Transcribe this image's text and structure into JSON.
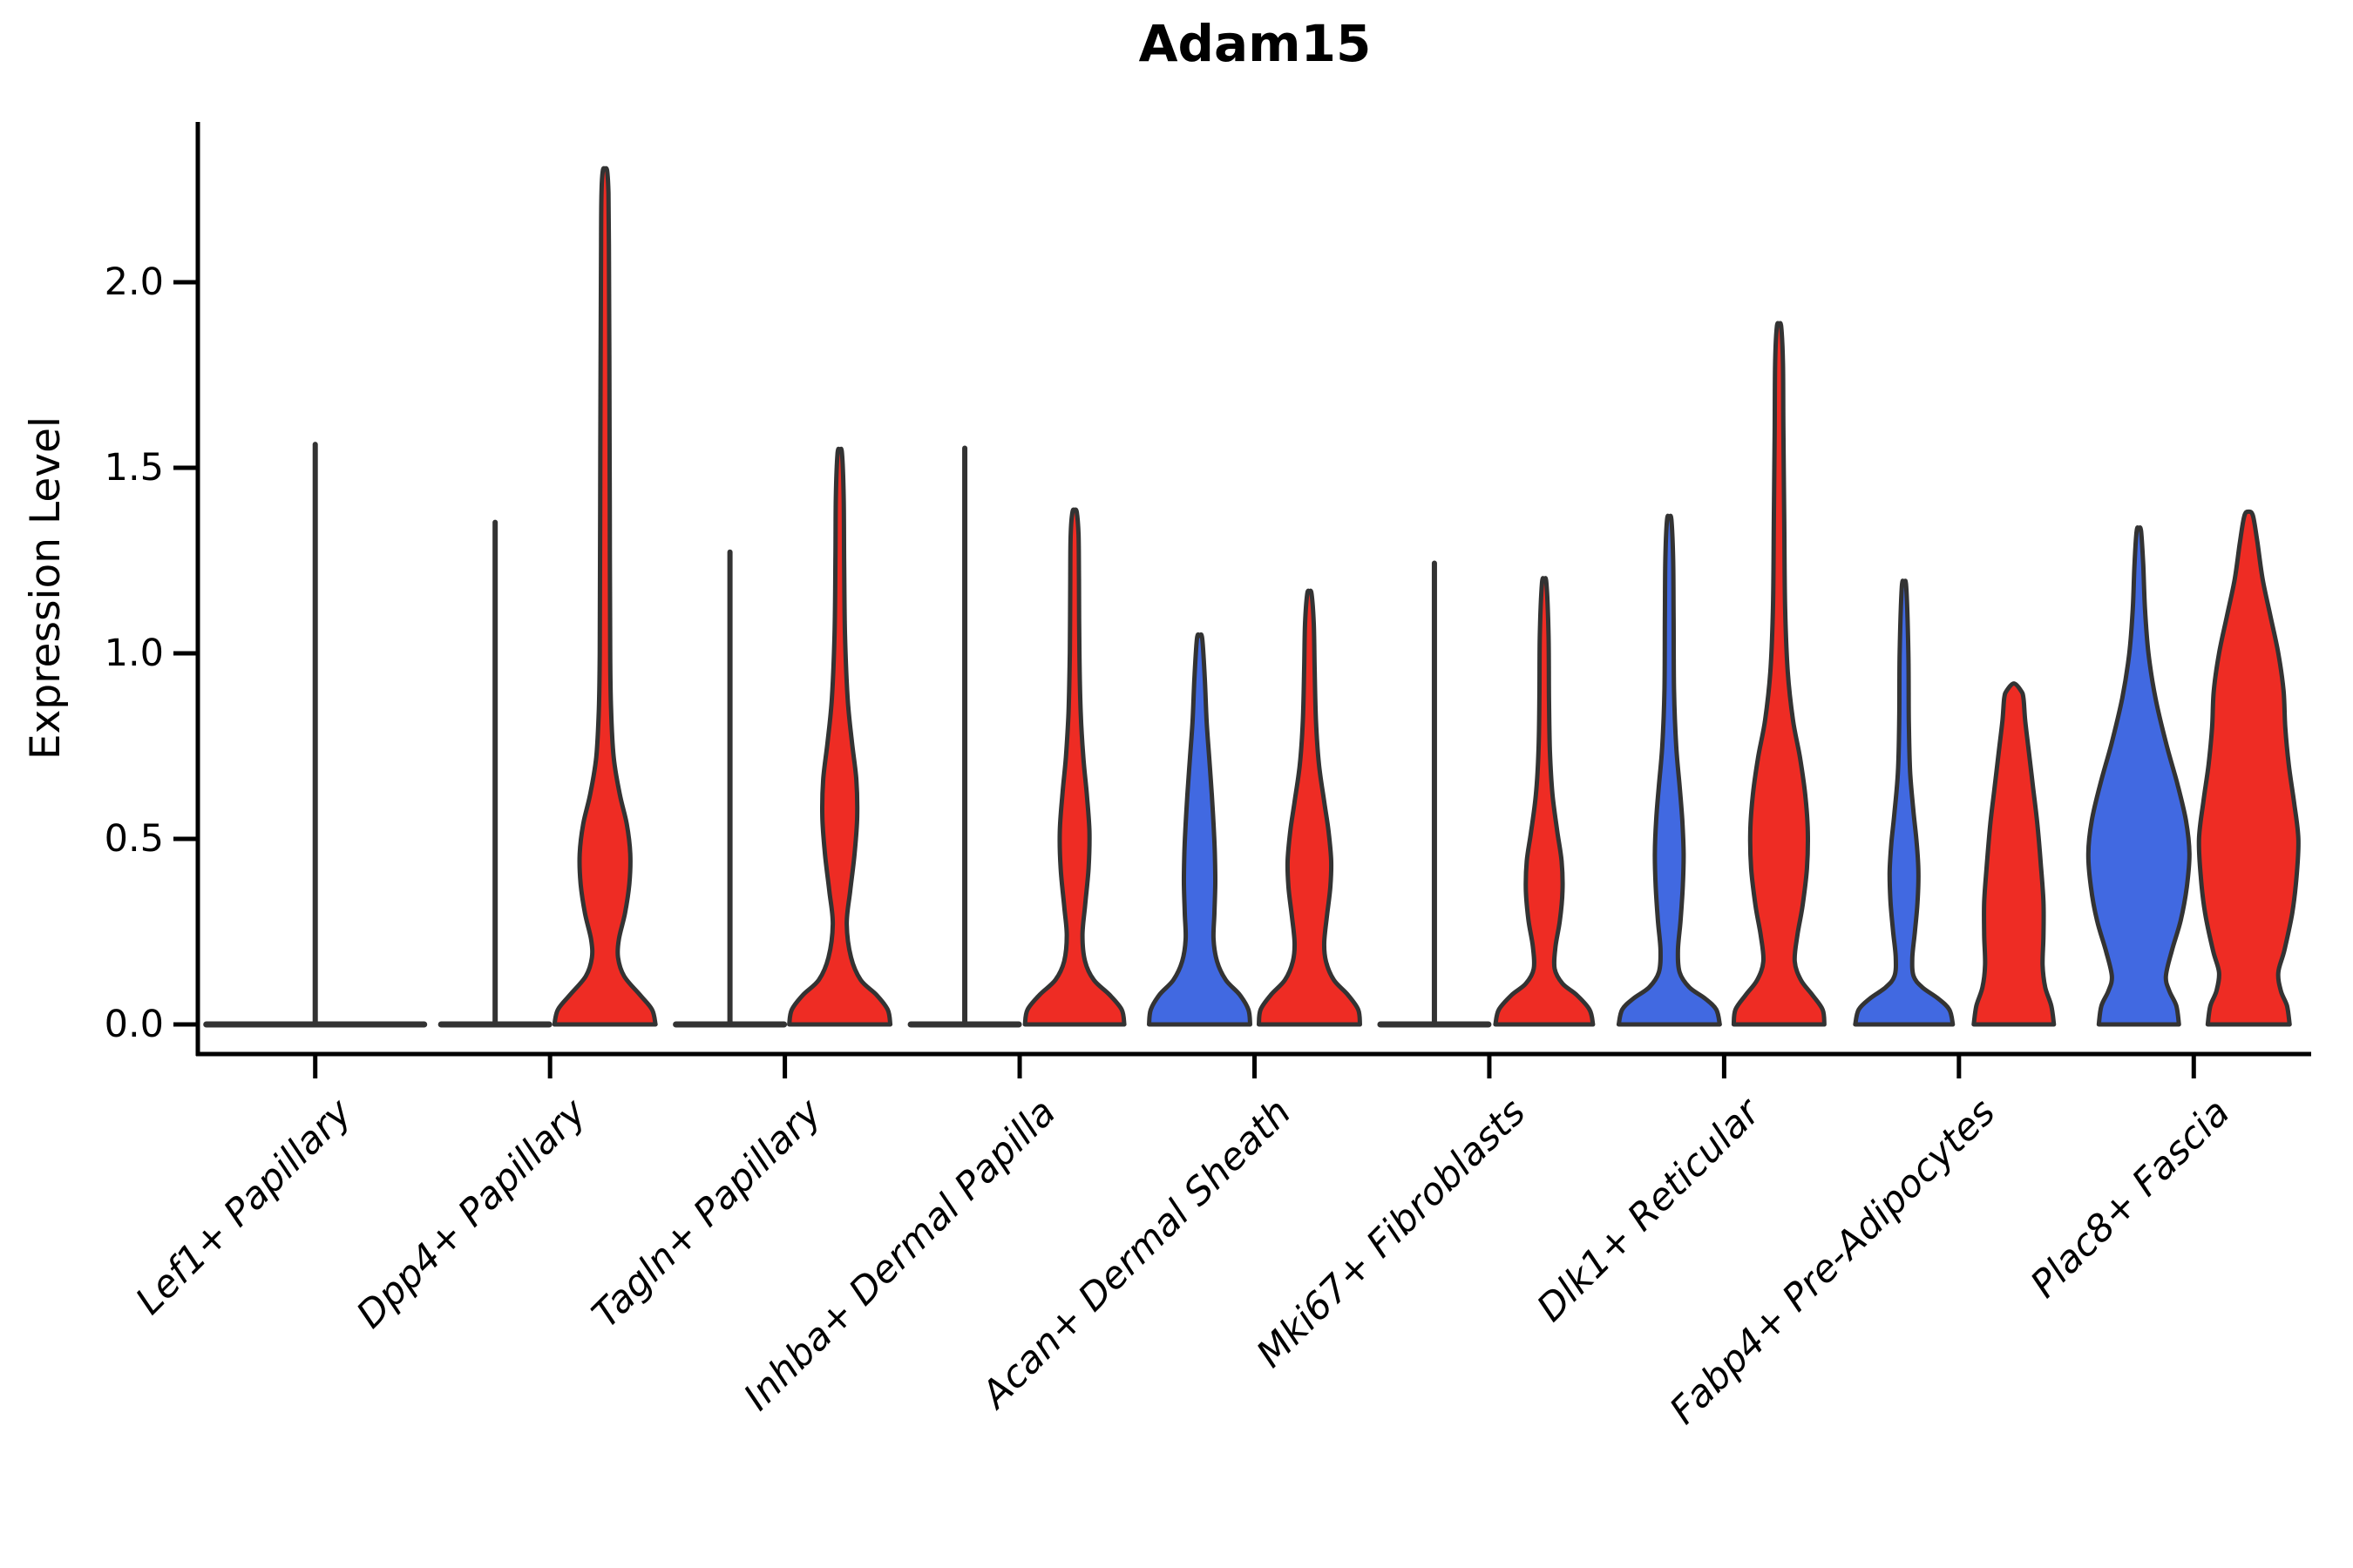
{
  "colors": {
    "blue_fill": "#4169E1",
    "red_fill": "#EE2C24",
    "violin_outline": "#333333",
    "axis_color": "#000000"
  },
  "chart_data": {
    "type": "violin",
    "title": "Adam15",
    "ylabel": "Expression Level",
    "yticks": [
      0.0,
      0.5,
      1.0,
      1.5,
      2.0
    ],
    "ytick_labels": [
      "0.0",
      "0.5",
      "1.0",
      "1.5",
      "2.0"
    ],
    "ylim": [
      -0.08,
      2.43
    ],
    "grid": false,
    "legend_position": "none",
    "group_colors": {
      "left": "#4169E1",
      "right": "#EE2C24"
    },
    "categories": [
      "Lef1+ Papillary",
      "Dpp4+ Papillary",
      "Tagln+ Papillary",
      "Inhba+ Dermal Papilla",
      "Acan+ Dermal Sheath",
      "Mki67+ Fibroblasts",
      "Dlk1+ Reticular",
      "Fabp4+ Pre-Adipocytes",
      "Plac8+ Fascia"
    ],
    "violins": [
      {
        "category": "Lef1+ Papillary",
        "center_spike": 1.57,
        "left": {
          "collapsed": true,
          "spike": null
        },
        "right": {
          "collapsed": true,
          "spike": null
        }
      },
      {
        "category": "Dpp4+ Papillary",
        "left": {
          "collapsed": true,
          "spike": 1.36
        },
        "right": {
          "max": 2.3,
          "profile": [
            [
              0,
              58
            ],
            [
              0.04,
              54
            ],
            [
              0.08,
              40
            ],
            [
              0.13,
              22
            ],
            [
              0.18,
              15
            ],
            [
              0.23,
              16
            ],
            [
              0.3,
              23
            ],
            [
              0.38,
              28
            ],
            [
              0.46,
              29
            ],
            [
              0.54,
              25
            ],
            [
              0.62,
              17
            ],
            [
              0.72,
              10
            ],
            [
              0.85,
              7
            ],
            [
              1.0,
              6
            ],
            [
              1.4,
              5.5
            ],
            [
              1.8,
              5
            ],
            [
              2.1,
              4.5
            ],
            [
              2.24,
              4
            ],
            [
              2.3,
              2.5
            ]
          ]
        }
      },
      {
        "category": "Tagln+ Papillary",
        "left": {
          "collapsed": true,
          "spike": 1.28
        },
        "right": {
          "max": 1.54,
          "profile": [
            [
              0,
              58
            ],
            [
              0.04,
              55
            ],
            [
              0.08,
              42
            ],
            [
              0.12,
              24
            ],
            [
              0.18,
              13
            ],
            [
              0.27,
              8
            ],
            [
              0.36,
              12
            ],
            [
              0.46,
              17
            ],
            [
              0.56,
              20
            ],
            [
              0.66,
              19
            ],
            [
              0.76,
              14
            ],
            [
              0.88,
              9
            ],
            [
              1.05,
              6
            ],
            [
              1.25,
              5
            ],
            [
              1.42,
              4.5
            ],
            [
              1.54,
              2.5
            ]
          ]
        }
      },
      {
        "category": "Inhba+ Dermal Papilla",
        "left": {
          "collapsed": true,
          "spike": 1.56
        },
        "right": {
          "max": 1.38,
          "profile": [
            [
              0,
              57
            ],
            [
              0.04,
              54
            ],
            [
              0.08,
              40
            ],
            [
              0.12,
              22
            ],
            [
              0.17,
              12
            ],
            [
              0.24,
              9
            ],
            [
              0.32,
              12
            ],
            [
              0.42,
              16
            ],
            [
              0.52,
              17
            ],
            [
              0.62,
              14
            ],
            [
              0.72,
              10
            ],
            [
              0.84,
              7
            ],
            [
              1.0,
              5.5
            ],
            [
              1.2,
              5
            ],
            [
              1.32,
              4.5
            ],
            [
              1.38,
              2.5
            ]
          ]
        }
      },
      {
        "category": "Acan+ Dermal Sheath",
        "left": {
          "max": 1.04,
          "profile": [
            [
              0,
              58
            ],
            [
              0.04,
              56
            ],
            [
              0.08,
              46
            ],
            [
              0.12,
              30
            ],
            [
              0.17,
              20
            ],
            [
              0.23,
              16
            ],
            [
              0.3,
              17
            ],
            [
              0.38,
              18
            ],
            [
              0.46,
              17.5
            ],
            [
              0.54,
              16
            ],
            [
              0.62,
              14
            ],
            [
              0.72,
              11
            ],
            [
              0.82,
              8
            ],
            [
              0.93,
              6
            ],
            [
              1.04,
              3
            ]
          ]
        },
        "right": {
          "max": 1.16,
          "profile": [
            [
              0,
              58
            ],
            [
              0.04,
              56
            ],
            [
              0.08,
              44
            ],
            [
              0.12,
              28
            ],
            [
              0.17,
              19
            ],
            [
              0.22,
              17
            ],
            [
              0.29,
              20
            ],
            [
              0.37,
              24
            ],
            [
              0.44,
              25
            ],
            [
              0.52,
              22
            ],
            [
              0.6,
              17
            ],
            [
              0.7,
              11
            ],
            [
              0.82,
              7.5
            ],
            [
              0.96,
              6
            ],
            [
              1.08,
              5
            ],
            [
              1.16,
              2.5
            ]
          ]
        }
      },
      {
        "category": "Mki67+ Fibroblasts",
        "left": {
          "collapsed": true,
          "spike": 1.25
        },
        "right": {
          "max": 1.19,
          "profile": [
            [
              0,
              56
            ],
            [
              0.04,
              52
            ],
            [
              0.08,
              37
            ],
            [
              0.11,
              21
            ],
            [
              0.15,
              12
            ],
            [
              0.21,
              13
            ],
            [
              0.28,
              18
            ],
            [
              0.36,
              21
            ],
            [
              0.44,
              20
            ],
            [
              0.52,
              15
            ],
            [
              0.62,
              9.5
            ],
            [
              0.74,
              6.5
            ],
            [
              0.88,
              5.5
            ],
            [
              1.05,
              5
            ],
            [
              1.19,
              2.5
            ]
          ]
        }
      },
      {
        "category": "Dlk1+ Reticular",
        "left": {
          "max": 1.36,
          "profile": [
            [
              0,
              58
            ],
            [
              0.04,
              54
            ],
            [
              0.07,
              41
            ],
            [
              0.1,
              23
            ],
            [
              0.14,
              12
            ],
            [
              0.2,
              10
            ],
            [
              0.28,
              13
            ],
            [
              0.37,
              15.5
            ],
            [
              0.46,
              16.5
            ],
            [
              0.55,
              15
            ],
            [
              0.64,
              12
            ],
            [
              0.75,
              8
            ],
            [
              0.9,
              5.5
            ],
            [
              1.1,
              5
            ],
            [
              1.25,
              4.5
            ],
            [
              1.36,
              2.5
            ]
          ]
        },
        "right": {
          "max": 1.88,
          "profile": [
            [
              0,
              52
            ],
            [
              0.04,
              50
            ],
            [
              0.08,
              38
            ],
            [
              0.12,
              25
            ],
            [
              0.17,
              18
            ],
            [
              0.24,
              21
            ],
            [
              0.32,
              27
            ],
            [
              0.42,
              32
            ],
            [
              0.52,
              33
            ],
            [
              0.62,
              30
            ],
            [
              0.72,
              24
            ],
            [
              0.82,
              16
            ],
            [
              0.95,
              10
            ],
            [
              1.12,
              7
            ],
            [
              1.35,
              6
            ],
            [
              1.6,
              5
            ],
            [
              1.78,
              4.5
            ],
            [
              1.88,
              2.5
            ]
          ]
        }
      },
      {
        "category": "Fabp4+ Pre-Adipocytes",
        "left": {
          "max": 1.18,
          "profile": [
            [
              0,
              56
            ],
            [
              0.04,
              52
            ],
            [
              0.07,
              39
            ],
            [
              0.1,
              21
            ],
            [
              0.13,
              11
            ],
            [
              0.18,
              9.5
            ],
            [
              0.25,
              12.5
            ],
            [
              0.33,
              15.5
            ],
            [
              0.41,
              16.5
            ],
            [
              0.49,
              14.5
            ],
            [
              0.57,
              11
            ],
            [
              0.68,
              7
            ],
            [
              0.82,
              5.5
            ],
            [
              1.0,
              5
            ],
            [
              1.18,
              2.5
            ]
          ]
        },
        "right": {
          "max": 0.9,
          "profile": [
            [
              0,
              46
            ],
            [
              0.05,
              43
            ],
            [
              0.1,
              36
            ],
            [
              0.16,
              33
            ],
            [
              0.24,
              34
            ],
            [
              0.33,
              34
            ],
            [
              0.43,
              31
            ],
            [
              0.54,
              27
            ],
            [
              0.64,
              22
            ],
            [
              0.74,
              17
            ],
            [
              0.82,
              13
            ],
            [
              0.88,
              11
            ],
            [
              0.9,
              8
            ]
          ]
        }
      },
      {
        "category": "Plac8+ Fascia",
        "left": {
          "max": 1.33,
          "profile": [
            [
              0,
              46
            ],
            [
              0.05,
              43
            ],
            [
              0.09,
              35
            ],
            [
              0.13,
              31
            ],
            [
              0.2,
              38
            ],
            [
              0.28,
              48
            ],
            [
              0.37,
              55
            ],
            [
              0.46,
              58
            ],
            [
              0.55,
              54
            ],
            [
              0.65,
              44
            ],
            [
              0.76,
              31
            ],
            [
              0.88,
              19
            ],
            [
              1.0,
              11
            ],
            [
              1.12,
              7
            ],
            [
              1.24,
              5
            ],
            [
              1.33,
              2.5
            ]
          ]
        },
        "right": {
          "max": 1.37,
          "profile": [
            [
              0,
              47
            ],
            [
              0.05,
              44
            ],
            [
              0.09,
              37
            ],
            [
              0.14,
              34
            ],
            [
              0.2,
              41
            ],
            [
              0.3,
              50
            ],
            [
              0.4,
              55
            ],
            [
              0.5,
              57
            ],
            [
              0.6,
              52
            ],
            [
              0.7,
              46
            ],
            [
              0.8,
              42
            ],
            [
              0.9,
              40
            ],
            [
              1.0,
              34
            ],
            [
              1.1,
              25
            ],
            [
              1.2,
              16
            ],
            [
              1.3,
              10
            ],
            [
              1.37,
              5
            ]
          ]
        }
      }
    ]
  }
}
